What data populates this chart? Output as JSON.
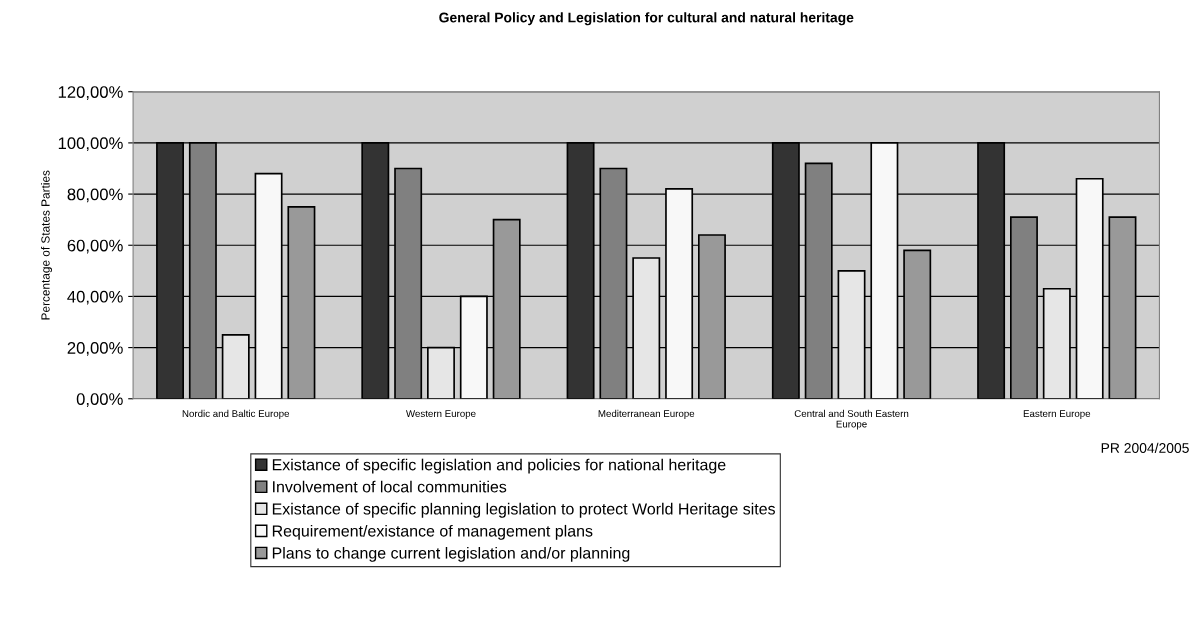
{
  "chart_data": {
    "type": "bar",
    "title": "General Policy and Legislation for cultural and natural heritage",
    "ylabel": "Percentage of States Parties",
    "categories": [
      "Nordic and Baltic Europe",
      "Western Europe",
      "Mediterranean Europe",
      "Central and South Eastern Europe",
      "Eastern Europe"
    ],
    "series": [
      {
        "name": "Existance of specific legislation and policies for national heritage",
        "color": "#333333",
        "values": [
          100,
          100,
          100,
          100,
          100
        ]
      },
      {
        "name": "Involvement of local communities",
        "color": "#808080",
        "values": [
          100,
          90,
          90,
          92,
          71
        ]
      },
      {
        "name": "Existance of specific planning legislation to protect World Heritage sites",
        "color": "#e6e6e6",
        "values": [
          25,
          20,
          55,
          50,
          43
        ]
      },
      {
        "name": "Requirement/existance of management plans",
        "color": "#f8f8f8",
        "values": [
          88,
          40,
          82,
          100,
          86
        ]
      },
      {
        "name": "Plans to change current legislation and/or planning",
        "color": "#999999",
        "values": [
          75,
          70,
          64,
          58,
          71
        ]
      }
    ],
    "ylim": [
      0,
      120
    ],
    "yticks": [
      {
        "value": 0,
        "label": "0,00%"
      },
      {
        "value": 20,
        "label": "20,00%"
      },
      {
        "value": 40,
        "label": "40,00%"
      },
      {
        "value": 60,
        "label": "60,00%"
      },
      {
        "value": 80,
        "label": "80,00%"
      },
      {
        "value": 100,
        "label": "100,00%"
      },
      {
        "value": 120,
        "label": "120,00%"
      }
    ],
    "grid": "y",
    "legend": "bottom",
    "annotations": [
      "PR 2004/2005"
    ]
  }
}
